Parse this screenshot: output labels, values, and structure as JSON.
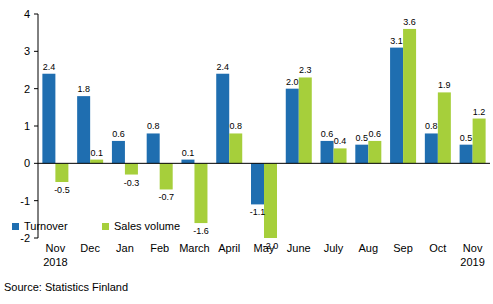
{
  "chart_data": {
    "type": "bar",
    "categories": [
      "Nov 2018",
      "Dec",
      "Jan",
      "Feb",
      "March",
      "April",
      "May",
      "June",
      "July",
      "Aug",
      "Sep",
      "Oct",
      "Nov 2019"
    ],
    "series": [
      {
        "name": "Turnover",
        "color": "#1f6eb0",
        "values": [
          2.4,
          1.8,
          0.6,
          0.8,
          0.1,
          2.4,
          -1.1,
          2.0,
          0.6,
          0.5,
          3.1,
          0.8,
          0.5
        ],
        "value_labels": [
          "2.4",
          "1.8",
          "0.6",
          "0.8",
          "0.1",
          "2.4",
          "-1.1",
          "2.0",
          "0.6",
          "0.5",
          "3.1",
          "0.8",
          "0.5"
        ]
      },
      {
        "name": "Sales volume",
        "color": "#a6cf3b",
        "values": [
          -0.5,
          0.1,
          -0.3,
          -0.7,
          -1.6,
          0.8,
          -2.0,
          2.3,
          0.4,
          0.6,
          3.6,
          1.9,
          1.2
        ],
        "value_labels": [
          "-0.5",
          "0.1",
          "-0.3",
          "-0.7",
          "-1.6",
          "0.8",
          "-2.0",
          "2.3",
          "0.4",
          "0.6",
          "3.6",
          "1.9",
          "1.2"
        ]
      }
    ],
    "ylim": [
      -2,
      4
    ],
    "yticks": [
      -2,
      -1,
      0,
      1,
      2,
      3,
      4
    ],
    "grid": false,
    "data_labels": true,
    "legend": "lower left",
    "source": "Source: Statistics Finland"
  }
}
